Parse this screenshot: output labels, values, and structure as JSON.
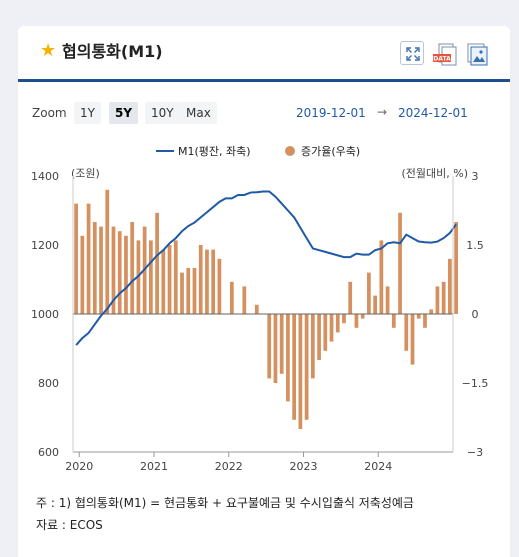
{
  "header": {
    "title": "협의통화(M1)",
    "star_icon": "star-icon",
    "buttons": [
      {
        "name": "expand-button",
        "icon": "expand-icon"
      },
      {
        "name": "download-data-button",
        "icon": "data-download-icon",
        "badge": "DATA"
      },
      {
        "name": "download-image-button",
        "icon": "image-download-icon"
      }
    ]
  },
  "zoom": {
    "label": "Zoom",
    "options": [
      "1Y",
      "5Y",
      "10Y",
      "Max"
    ],
    "selected": "5Y",
    "start_date": "2019-12-01",
    "arrow": "→",
    "end_date": "2024-12-01"
  },
  "colors": {
    "line": "#1f5aa6",
    "bar": "#d4915f",
    "accent": "#1c4f8c",
    "star": "#f5b301"
  },
  "chart_data": {
    "type": "bar",
    "legend_position": "top-center",
    "grid": false,
    "left_axis": {
      "unit_label": "(조원)",
      "ticks": [
        600,
        800,
        1000,
        1200,
        1400
      ],
      "range": [
        600,
        1400
      ]
    },
    "right_axis": {
      "unit_label": "(전월대비, %)",
      "ticks": [
        -3,
        -1.5,
        0,
        1.5,
        3
      ],
      "tick_labels": [
        "−3",
        "−1.5",
        "0",
        "1.5",
        "3"
      ],
      "range": [
        -3,
        3
      ]
    },
    "x_axis": {
      "tick_labels": [
        "2020",
        "2021",
        "2022",
        "2023",
        "2024"
      ],
      "range": [
        "2019-12",
        "2024-12"
      ]
    },
    "series": [
      {
        "name": "M1(평잔, 좌축)",
        "kind": "line",
        "axis": "left",
        "points": [
          [
            "2019-12",
            910
          ],
          [
            "2020-01",
            930
          ],
          [
            "2020-02",
            945
          ],
          [
            "2020-03",
            970
          ],
          [
            "2020-04",
            995
          ],
          [
            "2020-05",
            1015
          ],
          [
            "2020-06",
            1040
          ],
          [
            "2020-07",
            1060
          ],
          [
            "2020-08",
            1075
          ],
          [
            "2020-09",
            1095
          ],
          [
            "2020-10",
            1110
          ],
          [
            "2020-11",
            1130
          ],
          [
            "2020-12",
            1150
          ],
          [
            "2021-01",
            1170
          ],
          [
            "2021-02",
            1185
          ],
          [
            "2021-03",
            1205
          ],
          [
            "2021-04",
            1220
          ],
          [
            "2021-05",
            1240
          ],
          [
            "2021-06",
            1255
          ],
          [
            "2021-07",
            1265
          ],
          [
            "2021-08",
            1280
          ],
          [
            "2021-09",
            1295
          ],
          [
            "2021-10",
            1310
          ],
          [
            "2021-11",
            1325
          ],
          [
            "2021-12",
            1335
          ],
          [
            "2022-01",
            1335
          ],
          [
            "2022-02",
            1345
          ],
          [
            "2022-03",
            1345
          ],
          [
            "2022-04",
            1352
          ],
          [
            "2022-05",
            1353
          ],
          [
            "2022-06",
            1355
          ],
          [
            "2022-07",
            1355
          ],
          [
            "2022-08",
            1340
          ],
          [
            "2022-09",
            1320
          ],
          [
            "2022-10",
            1300
          ],
          [
            "2022-11",
            1280
          ],
          [
            "2022-12",
            1250
          ],
          [
            "2023-01",
            1220
          ],
          [
            "2023-02",
            1190
          ],
          [
            "2023-03",
            1185
          ],
          [
            "2023-04",
            1180
          ],
          [
            "2023-05",
            1175
          ],
          [
            "2023-06",
            1170
          ],
          [
            "2023-07",
            1165
          ],
          [
            "2023-08",
            1165
          ],
          [
            "2023-09",
            1175
          ],
          [
            "2023-10",
            1172
          ],
          [
            "2023-11",
            1172
          ],
          [
            "2023-12",
            1185
          ],
          [
            "2024-01",
            1190
          ],
          [
            "2024-02",
            1205
          ],
          [
            "2024-03",
            1208
          ],
          [
            "2024-04",
            1205
          ],
          [
            "2024-05",
            1230
          ],
          [
            "2024-06",
            1220
          ],
          [
            "2024-07",
            1210
          ],
          [
            "2024-08",
            1208
          ],
          [
            "2024-09",
            1207
          ],
          [
            "2024-10",
            1210
          ],
          [
            "2024-11",
            1220
          ],
          [
            "2024-12",
            1235
          ],
          [
            "2025-01",
            1260
          ]
        ]
      },
      {
        "name": "증가율(우축)",
        "kind": "bar",
        "axis": "right",
        "points": [
          [
            "2019-12",
            2.4
          ],
          [
            "2020-01",
            1.7
          ],
          [
            "2020-02",
            2.4
          ],
          [
            "2020-03",
            2.0
          ],
          [
            "2020-04",
            1.9
          ],
          [
            "2020-05",
            2.7
          ],
          [
            "2020-06",
            1.9
          ],
          [
            "2020-07",
            1.8
          ],
          [
            "2020-08",
            1.7
          ],
          [
            "2020-09",
            2.0
          ],
          [
            "2020-10",
            1.6
          ],
          [
            "2020-11",
            1.9
          ],
          [
            "2020-12",
            1.6
          ],
          [
            "2021-01",
            2.2
          ],
          [
            "2021-02",
            1.4
          ],
          [
            "2021-03",
            1.5
          ],
          [
            "2021-04",
            1.6
          ],
          [
            "2021-05",
            0.9
          ],
          [
            "2021-06",
            1.0
          ],
          [
            "2021-07",
            1.0
          ],
          [
            "2021-08",
            1.5
          ],
          [
            "2021-09",
            1.4
          ],
          [
            "2021-10",
            1.4
          ],
          [
            "2021-11",
            1.2
          ],
          [
            "2021-12",
            0.0
          ],
          [
            "2022-01",
            0.7
          ],
          [
            "2022-02",
            0.0
          ],
          [
            "2022-03",
            0.6
          ],
          [
            "2022-04",
            0.0
          ],
          [
            "2022-05",
            0.2
          ],
          [
            "2022-06",
            0.0
          ],
          [
            "2022-07",
            -1.4
          ],
          [
            "2022-08",
            -1.5
          ],
          [
            "2022-09",
            -1.3
          ],
          [
            "2022-10",
            -1.9
          ],
          [
            "2022-11",
            -2.3
          ],
          [
            "2022-12",
            -2.5
          ],
          [
            "2023-01",
            -2.3
          ],
          [
            "2023-02",
            -1.4
          ],
          [
            "2023-03",
            -1.0
          ],
          [
            "2023-04",
            -0.8
          ],
          [
            "2023-05",
            -0.6
          ],
          [
            "2023-06",
            -0.4
          ],
          [
            "2023-07",
            -0.2
          ],
          [
            "2023-08",
            0.7
          ],
          [
            "2023-09",
            -0.3
          ],
          [
            "2023-10",
            -0.1
          ],
          [
            "2023-11",
            0.9
          ],
          [
            "2023-12",
            0.4
          ],
          [
            "2024-01",
            1.6
          ],
          [
            "2024-02",
            0.6
          ],
          [
            "2024-03",
            -0.3
          ],
          [
            "2024-04",
            2.2
          ],
          [
            "2024-05",
            -0.8
          ],
          [
            "2024-06",
            -1.1
          ],
          [
            "2024-07",
            -0.1
          ],
          [
            "2024-08",
            -0.3
          ],
          [
            "2024-09",
            0.1
          ],
          [
            "2024-10",
            0.6
          ],
          [
            "2024-11",
            0.7
          ],
          [
            "2024-12",
            1.2
          ],
          [
            "2025-01",
            2.0
          ]
        ]
      }
    ]
  },
  "notes": {
    "line1": "주 : 1)  협의통화(M1) = 현금통화 + 요구불예금 및 수시입출식 저축성예금",
    "line2": "자료 :  ECOS"
  }
}
